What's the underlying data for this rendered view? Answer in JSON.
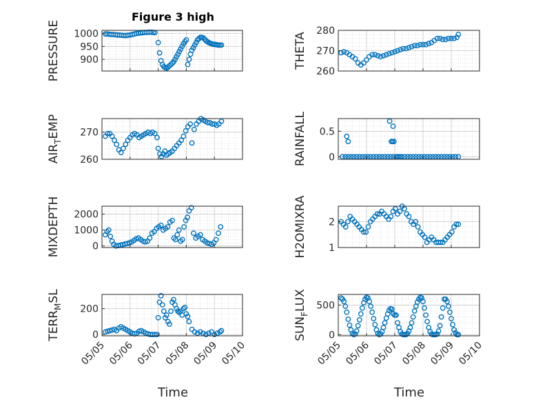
{
  "figure": {
    "title": "Figure 3 high",
    "xlabel": "Time",
    "marker_color": "#0072BD",
    "grid": true,
    "x_ticks": [
      "05/05",
      "05/06",
      "05/07",
      "05/08",
      "05/09",
      "05/10"
    ]
  },
  "chart_data": [
    {
      "type": "scatter",
      "ylabel": "PRESSURE",
      "ylim": [
        855,
        1012
      ],
      "yticks": [
        900,
        950,
        1000
      ],
      "xlim": [
        0,
        5
      ],
      "x": [
        0.12,
        0.18,
        0.25,
        0.32,
        0.4,
        0.48,
        0.55,
        0.62,
        0.7,
        0.78,
        0.85,
        0.92,
        1.0,
        1.08,
        1.15,
        1.22,
        1.3,
        1.38,
        1.45,
        1.52,
        1.6,
        1.68,
        1.75,
        1.82,
        1.88,
        2.0,
        2.05,
        2.1,
        2.15,
        2.2,
        2.25,
        2.3,
        2.35,
        2.4,
        2.45,
        2.5,
        2.55,
        2.6,
        2.65,
        2.7,
        2.75,
        2.8,
        2.85,
        2.9,
        2.95,
        3.0,
        3.05,
        3.1,
        3.15,
        3.2,
        3.25,
        3.3,
        3.35,
        3.4,
        3.45,
        3.5,
        3.55,
        3.6,
        3.65,
        3.7,
        3.75,
        3.8,
        3.85,
        3.9,
        3.95,
        4.0,
        4.05,
        4.1,
        4.15,
        4.2,
        4.25
      ],
      "y": [
        998,
        998,
        997,
        996,
        996,
        995,
        994,
        994,
        993,
        992,
        992,
        993,
        994,
        996,
        998,
        1000,
        1001,
        1002,
        1003,
        1004,
        1004,
        1005,
        1005,
        1004,
        1003,
        965,
        925,
        895,
        880,
        872,
        868,
        866,
        870,
        875,
        880,
        885,
        890,
        900,
        910,
        920,
        930,
        940,
        950,
        960,
        968,
        975,
        880,
        900,
        920,
        935,
        945,
        955,
        965,
        975,
        980,
        985,
        985,
        983,
        978,
        972,
        968,
        965,
        962,
        960,
        958,
        958,
        957,
        956,
        955,
        955,
        955
      ]
    },
    {
      "type": "scatter",
      "ylabel": "THETA",
      "ylim": [
        260,
        280
      ],
      "yticks": [
        260,
        270,
        280
      ],
      "xlim": [
        0,
        5
      ],
      "x": [
        0.1,
        0.2,
        0.3,
        0.4,
        0.5,
        0.6,
        0.7,
        0.8,
        0.9,
        1.0,
        1.1,
        1.2,
        1.3,
        1.4,
        1.5,
        1.6,
        1.7,
        1.8,
        1.9,
        2.0,
        2.1,
        2.2,
        2.3,
        2.4,
        2.5,
        2.6,
        2.7,
        2.8,
        2.9,
        3.0,
        3.1,
        3.2,
        3.3,
        3.4,
        3.5,
        3.6,
        3.7,
        3.8,
        3.9,
        4.0,
        4.1,
        4.2,
        4.25
      ],
      "y": [
        269,
        269.5,
        269,
        268,
        267,
        266,
        264,
        263,
        264,
        265.5,
        267,
        268,
        268,
        267.5,
        267,
        267.5,
        268,
        268.5,
        269,
        269.5,
        270,
        270.5,
        271,
        271,
        271.5,
        272,
        272.5,
        272.5,
        273,
        273,
        273,
        273.5,
        274,
        275,
        276,
        276,
        275.5,
        275.5,
        276,
        276,
        276,
        276.5,
        278
      ]
    },
    {
      "type": "scatter",
      "ylabel": "AIR_TEMP",
      "ylabel_parts": [
        "AIR",
        "T",
        "EMP"
      ],
      "ylim": [
        260,
        275
      ],
      "yticks": [
        260,
        270
      ],
      "xlim": [
        0,
        5
      ],
      "x": [
        0.12,
        0.2,
        0.28,
        0.36,
        0.44,
        0.52,
        0.6,
        0.68,
        0.76,
        0.84,
        0.92,
        1.0,
        1.08,
        1.16,
        1.24,
        1.32,
        1.4,
        1.48,
        1.56,
        1.64,
        1.72,
        1.8,
        1.88,
        1.96,
        2.0,
        2.06,
        2.12,
        2.18,
        2.24,
        2.3,
        2.36,
        2.42,
        2.5,
        2.58,
        2.66,
        2.74,
        2.82,
        2.9,
        2.98,
        3.06,
        3.14,
        3.2,
        3.28,
        3.36,
        3.44,
        3.52,
        3.6,
        3.68,
        3.76,
        3.84,
        3.92,
        4.0,
        4.08,
        4.16,
        4.25
      ],
      "y": [
        268.5,
        269.5,
        269.5,
        268.5,
        267,
        265.5,
        263.5,
        262.5,
        264,
        265.5,
        267,
        268,
        269,
        269.5,
        269,
        268,
        268.5,
        269,
        269.5,
        270,
        269.5,
        270,
        269.5,
        268,
        264,
        262,
        261,
        262,
        263,
        261.5,
        262,
        262.5,
        263,
        264,
        265,
        266,
        267,
        268.5,
        270.5,
        272,
        273,
        266,
        271,
        273,
        274,
        275,
        274.5,
        274,
        273.5,
        273.5,
        273,
        273,
        272.5,
        273,
        274
      ]
    },
    {
      "type": "scatter",
      "ylabel": "RAINFALL",
      "ylim": [
        -0.05,
        0.75
      ],
      "yticks": [
        0,
        0.5
      ],
      "xlim": [
        0,
        5
      ],
      "x": [
        0.15,
        0.25,
        0.35,
        0.45,
        0.55,
        0.65,
        0.75,
        0.85,
        0.95,
        1.05,
        1.15,
        1.25,
        1.35,
        1.45,
        1.55,
        1.65,
        1.75,
        1.85,
        1.95,
        2.05,
        2.1,
        2.15,
        2.2,
        2.25,
        2.35,
        2.45,
        2.55,
        2.65,
        2.75,
        2.85,
        2.95,
        3.05,
        3.15,
        3.25,
        3.35,
        3.45,
        3.55,
        3.65,
        3.75,
        3.85,
        3.95,
        4.05,
        4.15,
        4.25,
        0.3,
        0.35,
        1.82,
        1.88,
        1.92,
        1.97,
        1.94
      ],
      "y": [
        0,
        0,
        0,
        0,
        0,
        0,
        0,
        0,
        0,
        0,
        0,
        0,
        0,
        0,
        0,
        0,
        0,
        0,
        0,
        0,
        0,
        0,
        0,
        0,
        0,
        0,
        0,
        0,
        0,
        0,
        0,
        0,
        0,
        0,
        0,
        0,
        0,
        0,
        0,
        0,
        0,
        0,
        0,
        0,
        0.4,
        0.3,
        0.7,
        0.3,
        0.3,
        0.3,
        0.6
      ]
    },
    {
      "type": "scatter",
      "ylabel": "MIXDEPTH",
      "ylim": [
        -100,
        2500
      ],
      "yticks": [
        0,
        1000,
        2000
      ],
      "xlim": [
        0,
        5
      ],
      "x": [
        0.12,
        0.18,
        0.24,
        0.3,
        0.36,
        0.42,
        0.5,
        0.58,
        0.66,
        0.74,
        0.82,
        0.9,
        0.98,
        1.06,
        1.14,
        1.22,
        1.3,
        1.38,
        1.46,
        1.54,
        1.62,
        1.7,
        1.78,
        1.86,
        1.94,
        2.02,
        2.1,
        2.18,
        2.26,
        2.34,
        2.42,
        2.5,
        2.56,
        2.62,
        2.68,
        2.74,
        2.8,
        2.86,
        2.92,
        2.98,
        3.04,
        3.1,
        3.18,
        3.26,
        3.34,
        3.42,
        3.5,
        3.58,
        3.66,
        3.74,
        3.82,
        3.9,
        3.98,
        4.06,
        4.14,
        4.22
      ],
      "y": [
        700,
        900,
        1000,
        600,
        300,
        100,
        0,
        20,
        50,
        80,
        120,
        150,
        200,
        250,
        350,
        450,
        500,
        400,
        300,
        250,
        300,
        500,
        800,
        900,
        1100,
        1200,
        1300,
        1000,
        1100,
        1200,
        1500,
        1600,
        500,
        400,
        700,
        1000,
        300,
        400,
        1200,
        1600,
        1800,
        2200,
        2400,
        800,
        500,
        600,
        700,
        400,
        300,
        200,
        150,
        100,
        200,
        400,
        800,
        1200
      ]
    },
    {
      "type": "scatter",
      "ylabel": "H2OMIXRA",
      "ylim": [
        1,
        2.6
      ],
      "yticks": [
        1,
        2
      ],
      "xlim": [
        0,
        5
      ],
      "x": [
        0.1,
        0.18,
        0.26,
        0.34,
        0.42,
        0.5,
        0.58,
        0.66,
        0.74,
        0.82,
        0.9,
        0.98,
        1.06,
        1.14,
        1.22,
        1.3,
        1.38,
        1.46,
        1.54,
        1.62,
        1.7,
        1.78,
        1.86,
        1.94,
        2.02,
        2.1,
        2.18,
        2.26,
        2.34,
        2.42,
        2.5,
        2.58,
        2.66,
        2.74,
        2.82,
        2.9,
        2.98,
        3.06,
        3.14,
        3.22,
        3.3,
        3.38,
        3.46,
        3.54,
        3.62,
        3.7,
        3.78,
        3.86,
        3.94,
        4.02,
        4.1,
        4.18,
        4.25
      ],
      "y": [
        2.0,
        1.9,
        1.8,
        2.0,
        2.2,
        2.1,
        2.0,
        1.9,
        1.8,
        1.7,
        1.6,
        1.6,
        1.8,
        2.0,
        2.1,
        2.2,
        2.3,
        2.3,
        2.4,
        2.3,
        2.2,
        2.1,
        2.2,
        2.4,
        2.5,
        2.3,
        2.4,
        2.6,
        2.5,
        2.3,
        2.2,
        2.0,
        1.9,
        2.0,
        1.8,
        1.6,
        1.5,
        1.4,
        1.2,
        1.3,
        1.4,
        1.3,
        1.2,
        1.2,
        1.2,
        1.2,
        1.3,
        1.4,
        1.5,
        1.6,
        1.8,
        1.9,
        1.9
      ]
    },
    {
      "type": "scatter",
      "ylabel": "TERR_MSL",
      "ylabel_parts": [
        "TERR",
        "M",
        "SL"
      ],
      "ylim": [
        -10,
        310
      ],
      "yticks": [
        0,
        200
      ],
      "xlim": [
        0,
        5
      ],
      "x": [
        0.12,
        0.2,
        0.28,
        0.36,
        0.44,
        0.52,
        0.6,
        0.68,
        0.76,
        0.84,
        0.92,
        1.0,
        1.08,
        1.16,
        1.24,
        1.32,
        1.4,
        1.48,
        1.56,
        1.64,
        1.72,
        1.8,
        1.88,
        1.96,
        2.0,
        2.05,
        2.1,
        2.15,
        2.2,
        2.25,
        2.3,
        2.35,
        2.4,
        2.45,
        2.5,
        2.55,
        2.6,
        2.65,
        2.7,
        2.75,
        2.8,
        2.85,
        2.9,
        2.95,
        3.0,
        3.05,
        3.1,
        3.2,
        3.3,
        3.4,
        3.5,
        3.6,
        3.7,
        3.8,
        3.9,
        4.0,
        4.1,
        4.2,
        4.25
      ],
      "y": [
        20,
        25,
        30,
        35,
        40,
        30,
        50,
        60,
        50,
        40,
        30,
        20,
        10,
        5,
        10,
        25,
        30,
        20,
        10,
        5,
        0,
        0,
        0,
        0,
        130,
        250,
        300,
        230,
        180,
        130,
        150,
        100,
        80,
        180,
        250,
        270,
        230,
        200,
        180,
        170,
        180,
        150,
        200,
        210,
        160,
        140,
        100,
        40,
        20,
        10,
        20,
        10,
        0,
        10,
        20,
        0,
        10,
        20,
        30
      ]
    },
    {
      "type": "scatter",
      "ylabel": "SUN_FLUX",
      "ylabel_parts": [
        "SUN",
        "F",
        "LUX"
      ],
      "ylim": [
        -20,
        680
      ],
      "yticks": [
        0,
        500
      ],
      "xlim": [
        0,
        5
      ],
      "x": [
        0.1,
        0.15,
        0.2,
        0.25,
        0.3,
        0.35,
        0.4,
        0.45,
        0.5,
        0.55,
        0.6,
        0.65,
        0.7,
        0.75,
        0.8,
        0.85,
        0.9,
        0.95,
        1.0,
        1.05,
        1.1,
        1.15,
        1.2,
        1.25,
        1.3,
        1.35,
        1.4,
        1.45,
        1.5,
        1.55,
        1.6,
        1.65,
        1.7,
        1.75,
        1.8,
        1.85,
        1.9,
        1.95,
        2.0,
        2.05,
        2.1,
        2.15,
        2.2,
        2.25,
        2.3,
        2.35,
        2.4,
        2.45,
        2.5,
        2.55,
        2.6,
        2.65,
        2.7,
        2.75,
        2.8,
        2.85,
        2.9,
        2.95,
        3.0,
        3.05,
        3.1,
        3.15,
        3.2,
        3.25,
        3.3,
        3.35,
        3.4,
        3.45,
        3.5,
        3.55,
        3.6,
        3.65,
        3.7,
        3.75,
        3.8,
        3.85,
        3.9,
        3.95,
        4.0,
        4.05,
        4.1,
        4.15,
        4.2,
        4.25
      ],
      "y": [
        620,
        600,
        560,
        480,
        380,
        260,
        160,
        80,
        20,
        0,
        10,
        60,
        150,
        250,
        350,
        450,
        540,
        600,
        630,
        620,
        560,
        480,
        380,
        270,
        170,
        80,
        20,
        0,
        10,
        50,
        120,
        200,
        280,
        350,
        410,
        440,
        430,
        350,
        330,
        330,
        200,
        120,
        50,
        10,
        0,
        0,
        0,
        20,
        60,
        120,
        200,
        300,
        400,
        480,
        550,
        600,
        630,
        620,
        560,
        450,
        330,
        220,
        120,
        50,
        10,
        0,
        0,
        0,
        10,
        60,
        150,
        300,
        450,
        600,
        600,
        560,
        480,
        380,
        270,
        170,
        80,
        30,
        0,
        0
      ]
    }
  ]
}
